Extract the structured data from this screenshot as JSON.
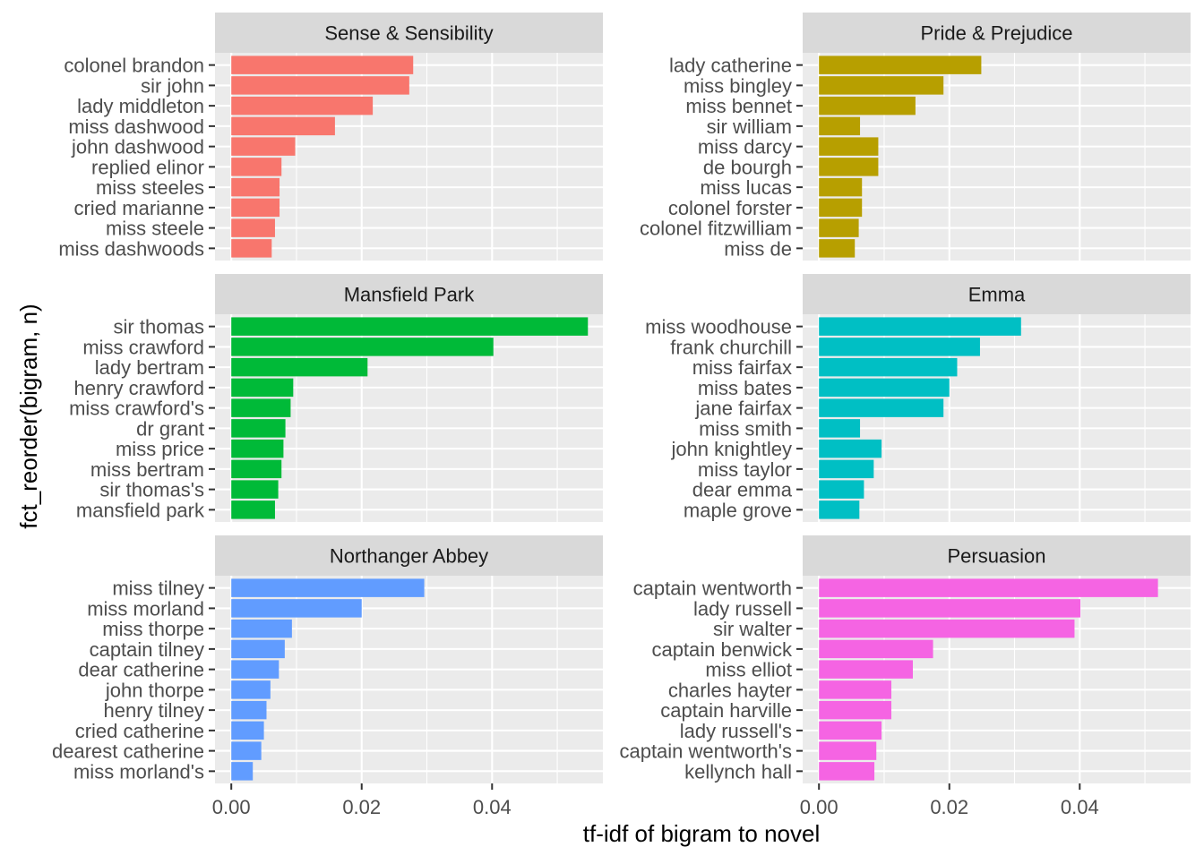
{
  "chart_data": {
    "type": "bar",
    "orientation": "horizontal",
    "xlabel": "tf-idf of bigram to novel",
    "ylabel": "fct_reorder(bigram, n)",
    "xlim": [
      -0.0025,
      0.057
    ],
    "x_ticks": [
      "0.00",
      "0.02",
      "0.04"
    ],
    "x_tick_values": [
      0,
      0.02,
      0.04
    ],
    "grid": true,
    "legend": "none",
    "panel_background": "#ebebeb",
    "strip_background": "#d9d9d9",
    "panels": [
      {
        "title": "Sense & Sensibility",
        "color": "#F8766D",
        "categories": [
          "colonel brandon",
          "sir john",
          "lady middleton",
          "miss dashwood",
          "john dashwood",
          "replied elinor",
          "miss steeles",
          "cried marianne",
          "miss steele",
          "miss dashwoods"
        ],
        "values": [
          0.0279,
          0.0273,
          0.0217,
          0.0159,
          0.0098,
          0.0077,
          0.0074,
          0.0074,
          0.0067,
          0.0062
        ]
      },
      {
        "title": "Pride & Prejudice",
        "color": "#B79F00",
        "categories": [
          "lady catherine",
          "miss bingley",
          "miss bennet",
          "sir william",
          "miss darcy",
          "de bourgh",
          "miss lucas",
          "colonel forster",
          "colonel fitzwilliam",
          "miss de"
        ],
        "values": [
          0.0249,
          0.0191,
          0.0148,
          0.0063,
          0.0091,
          0.0091,
          0.0066,
          0.0066,
          0.0061,
          0.0055
        ]
      },
      {
        "title": "Mansfield Park",
        "color": "#00BA38",
        "categories": [
          "sir thomas",
          "miss crawford",
          "lady bertram",
          "henry crawford",
          "miss crawford's",
          "dr grant",
          "miss price",
          "miss bertram",
          "sir thomas's",
          "mansfield park"
        ],
        "values": [
          0.0547,
          0.0402,
          0.0209,
          0.0095,
          0.0091,
          0.0083,
          0.008,
          0.0077,
          0.0072,
          0.0067
        ]
      },
      {
        "title": "Emma",
        "color": "#00BFC4",
        "categories": [
          "miss woodhouse",
          "frank churchill",
          "miss fairfax",
          "miss bates",
          "jane fairfax",
          "miss smith",
          "john knightley",
          "miss taylor",
          "dear emma",
          "maple grove"
        ],
        "values": [
          0.031,
          0.0247,
          0.0212,
          0.02,
          0.0191,
          0.0063,
          0.0096,
          0.0084,
          0.0069,
          0.0062
        ]
      },
      {
        "title": "Northanger Abbey",
        "color": "#619CFF",
        "categories": [
          "miss tilney",
          "miss morland",
          "miss thorpe",
          "captain tilney",
          "dear catherine",
          "john thorpe",
          "henry tilney",
          "cried catherine",
          "dearest catherine",
          "miss morland's"
        ],
        "values": [
          0.0296,
          0.02,
          0.0093,
          0.0082,
          0.0073,
          0.006,
          0.0054,
          0.005,
          0.0046,
          0.0033
        ]
      },
      {
        "title": "Persuasion",
        "color": "#F564E3",
        "categories": [
          "captain wentworth",
          "lady russell",
          "sir walter",
          "captain benwick",
          "miss elliot",
          "charles hayter",
          "captain harville",
          "lady russell's",
          "captain wentworth's",
          "kellynch hall"
        ],
        "values": [
          0.052,
          0.0401,
          0.0392,
          0.0175,
          0.0144,
          0.0111,
          0.0111,
          0.0096,
          0.0088,
          0.0085
        ]
      }
    ]
  }
}
